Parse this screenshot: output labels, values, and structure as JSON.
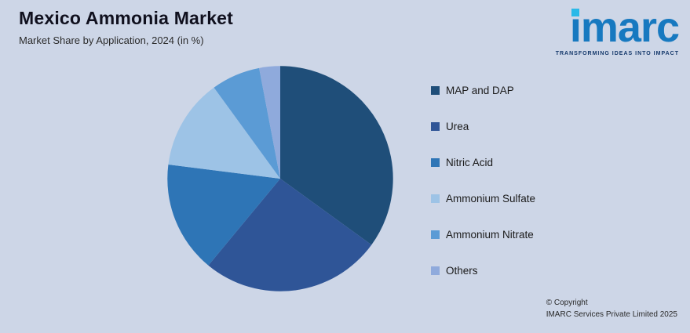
{
  "page": {
    "background_color": "#cdd6e7"
  },
  "header": {
    "title": "Mexico Ammonia Market",
    "subtitle": "Market Share by Application, 2024 (in %)"
  },
  "logo": {
    "i_char": "ı",
    "rest": "marc",
    "tagline": "TRANSFORMING IDEAS INTO IMPACT",
    "brand_color": "#1779c0",
    "accent_color": "#2ab9e8"
  },
  "footer": {
    "copyright_line1": "© Copyright",
    "copyright_line2": "IMARC Services Private Limited 2025"
  },
  "chart_data": {
    "type": "pie",
    "title": "Mexico Ammonia Market",
    "subtitle": "Market Share by Application, 2024 (in %)",
    "legend_position": "right",
    "start_angle_deg": 0,
    "direction": "clockwise",
    "units": "percent",
    "segments": [
      {
        "label": "MAP and DAP",
        "value": 35,
        "color": "#1f4e79"
      },
      {
        "label": "Urea",
        "value": 26,
        "color": "#2f5597"
      },
      {
        "label": "Nitric Acid",
        "value": 16,
        "color": "#2e75b6"
      },
      {
        "label": "Ammonium Sulfate",
        "value": 13,
        "color": "#9dc3e6"
      },
      {
        "label": "Ammonium Nitrate",
        "value": 7,
        "color": "#5b9bd5"
      },
      {
        "label": "Others",
        "value": 3,
        "color": "#8faadc"
      }
    ]
  }
}
